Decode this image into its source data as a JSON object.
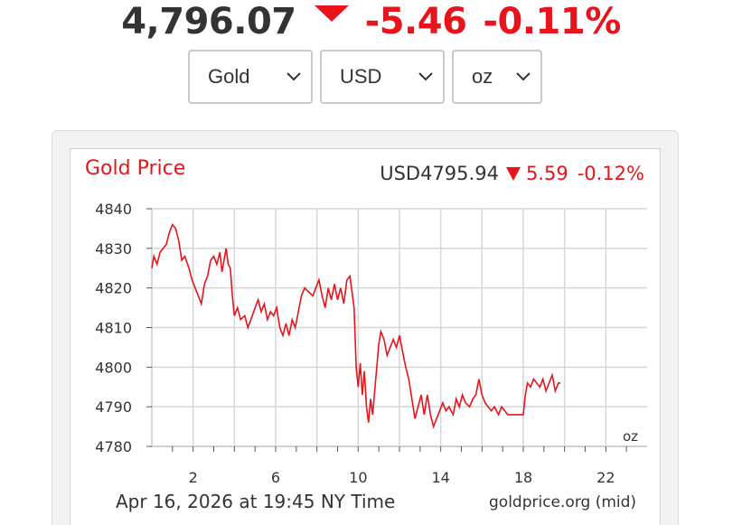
{
  "headline": {
    "price": "4,796.07",
    "change": "-5.46",
    "change_pct": "-0.11%",
    "direction_icon": "down-triangle-icon",
    "price_color": "#333333",
    "change_color": "#e8141c"
  },
  "selectors": {
    "metal": "Gold",
    "currency": "USD",
    "unit": "oz"
  },
  "chart_panel": {
    "title": "Gold Price",
    "quote_price": "USD4795.94",
    "quote_change": "5.59",
    "quote_change_pct": "-0.12%",
    "unit_label": "oz",
    "timestamp": "Apr 16, 2026 at 19:45 NY Time",
    "source": "goldprice.org (mid)"
  },
  "chart_data": {
    "type": "line",
    "title": "Gold Price",
    "xlabel": "",
    "ylabel": "",
    "xlim": [
      0,
      24
    ],
    "ylim": [
      4780,
      4840
    ],
    "x_ticks": [
      2,
      6,
      10,
      14,
      18,
      22
    ],
    "y_ticks": [
      4840,
      4830,
      4820,
      4810,
      4800,
      4790,
      4780
    ],
    "grid": true,
    "line_color": "#e8141c",
    "series": [
      {
        "values": [
          [
            0.0,
            4825
          ],
          [
            0.1,
            4828
          ],
          [
            0.25,
            4826
          ],
          [
            0.4,
            4829
          ],
          [
            0.55,
            4830
          ],
          [
            0.7,
            4831
          ],
          [
            0.85,
            4834
          ],
          [
            1.0,
            4836
          ],
          [
            1.15,
            4835
          ],
          [
            1.3,
            4832
          ],
          [
            1.45,
            4827
          ],
          [
            1.6,
            4828
          ],
          [
            1.8,
            4825
          ],
          [
            1.95,
            4822
          ],
          [
            2.1,
            4820
          ],
          [
            2.25,
            4818
          ],
          [
            2.4,
            4816
          ],
          [
            2.55,
            4821
          ],
          [
            2.7,
            4823
          ],
          [
            2.85,
            4827
          ],
          [
            3.0,
            4828
          ],
          [
            3.15,
            4826
          ],
          [
            3.3,
            4829
          ],
          [
            3.4,
            4824
          ],
          [
            3.5,
            4827
          ],
          [
            3.6,
            4830
          ],
          [
            3.7,
            4826
          ],
          [
            3.8,
            4825
          ],
          [
            3.9,
            4818
          ],
          [
            4.0,
            4813
          ],
          [
            4.15,
            4815
          ],
          [
            4.3,
            4812
          ],
          [
            4.5,
            4813
          ],
          [
            4.65,
            4810
          ],
          [
            4.8,
            4812
          ],
          [
            5.0,
            4815
          ],
          [
            5.15,
            4817
          ],
          [
            5.3,
            4814
          ],
          [
            5.45,
            4816
          ],
          [
            5.6,
            4812
          ],
          [
            5.75,
            4814
          ],
          [
            5.9,
            4813
          ],
          [
            6.05,
            4815
          ],
          [
            6.2,
            4810
          ],
          [
            6.35,
            4808
          ],
          [
            6.5,
            4811
          ],
          [
            6.65,
            4808
          ],
          [
            6.8,
            4812
          ],
          [
            6.95,
            4810
          ],
          [
            7.1,
            4814
          ],
          [
            7.25,
            4818
          ],
          [
            7.4,
            4820
          ],
          [
            7.6,
            4819
          ],
          [
            7.8,
            4818
          ],
          [
            7.95,
            4820
          ],
          [
            8.1,
            4822
          ],
          [
            8.25,
            4818
          ],
          [
            8.4,
            4815
          ],
          [
            8.55,
            4820
          ],
          [
            8.7,
            4817
          ],
          [
            8.85,
            4821
          ],
          [
            9.0,
            4817
          ],
          [
            9.15,
            4820
          ],
          [
            9.3,
            4816
          ],
          [
            9.45,
            4822
          ],
          [
            9.6,
            4823
          ],
          [
            9.7,
            4819
          ],
          [
            9.8,
            4815
          ],
          [
            9.9,
            4800
          ],
          [
            10.0,
            4795
          ],
          [
            10.1,
            4801
          ],
          [
            10.2,
            4793
          ],
          [
            10.3,
            4799
          ],
          [
            10.4,
            4790
          ],
          [
            10.5,
            4786
          ],
          [
            10.6,
            4792
          ],
          [
            10.7,
            4788
          ],
          [
            10.8,
            4794
          ],
          [
            10.9,
            4800
          ],
          [
            11.0,
            4806
          ],
          [
            11.1,
            4809
          ],
          [
            11.25,
            4807
          ],
          [
            11.4,
            4803
          ],
          [
            11.55,
            4805
          ],
          [
            11.7,
            4807
          ],
          [
            11.85,
            4805
          ],
          [
            12.0,
            4808
          ],
          [
            12.15,
            4804
          ],
          [
            12.3,
            4800
          ],
          [
            12.45,
            4797
          ],
          [
            12.6,
            4792
          ],
          [
            12.75,
            4787
          ],
          [
            12.9,
            4790
          ],
          [
            13.05,
            4793
          ],
          [
            13.2,
            4788
          ],
          [
            13.35,
            4793
          ],
          [
            13.5,
            4788
          ],
          [
            13.65,
            4785
          ],
          [
            13.8,
            4787
          ],
          [
            13.95,
            4789
          ],
          [
            14.1,
            4791
          ],
          [
            14.25,
            4789
          ],
          [
            14.4,
            4790
          ],
          [
            14.6,
            4788
          ],
          [
            14.75,
            4792
          ],
          [
            14.9,
            4790
          ],
          [
            15.05,
            4793
          ],
          [
            15.2,
            4791
          ],
          [
            15.4,
            4790
          ],
          [
            15.55,
            4792
          ],
          [
            15.7,
            4793
          ],
          [
            15.85,
            4797
          ],
          [
            16.0,
            4793
          ],
          [
            16.15,
            4791
          ],
          [
            16.3,
            4790
          ],
          [
            16.45,
            4789
          ],
          [
            16.6,
            4790
          ],
          [
            16.8,
            4788
          ],
          [
            16.95,
            4790
          ],
          [
            17.1,
            4789
          ],
          [
            17.25,
            4788
          ],
          [
            17.5,
            4788
          ],
          [
            17.75,
            4788
          ],
          [
            18.0,
            4788
          ],
          [
            18.1,
            4793
          ],
          [
            18.2,
            4796
          ],
          [
            18.35,
            4795
          ],
          [
            18.5,
            4797
          ],
          [
            18.65,
            4796
          ],
          [
            18.8,
            4795
          ],
          [
            18.95,
            4797
          ],
          [
            19.1,
            4794
          ],
          [
            19.25,
            4796
          ],
          [
            19.4,
            4798
          ],
          [
            19.55,
            4794
          ],
          [
            19.7,
            4796
          ],
          [
            19.8,
            4796
          ]
        ]
      }
    ]
  }
}
